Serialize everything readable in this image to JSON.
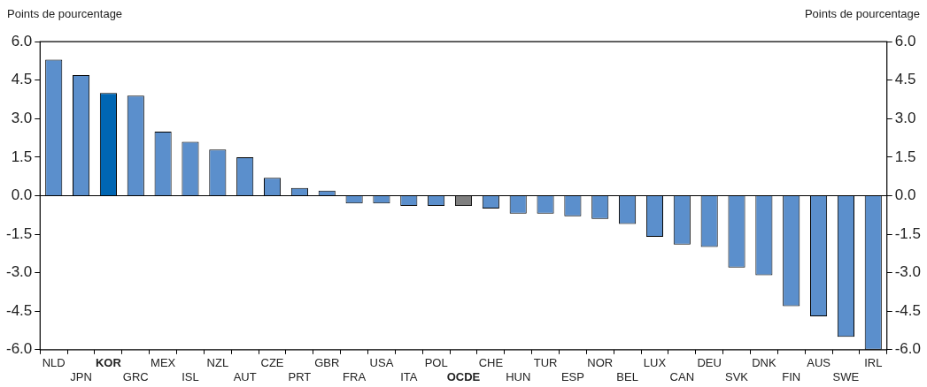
{
  "chart_data": {
    "type": "bar",
    "ylabel": "Points de pourcentage",
    "y2label": "Points de pourcentage",
    "categories": [
      "NLD",
      "JPN",
      "KOR",
      "GRC",
      "MEX",
      "ISL",
      "NZL",
      "AUT",
      "CZE",
      "PRT",
      "GBR",
      "FRA",
      "USA",
      "ITA",
      "POL",
      "OCDE",
      "CHE",
      "HUN",
      "TUR",
      "ESP",
      "NOR",
      "BEL",
      "LUX",
      "CAN",
      "DEU",
      "SVK",
      "DNK",
      "FIN",
      "AUS",
      "SWE",
      "IRL"
    ],
    "values": [
      5.3,
      4.7,
      4.0,
      3.9,
      2.5,
      2.1,
      1.8,
      1.5,
      0.7,
      0.3,
      0.2,
      -0.3,
      -0.3,
      -0.4,
      -0.4,
      -0.4,
      -0.5,
      -0.7,
      -0.7,
      -0.8,
      -0.9,
      -1.1,
      -1.6,
      -1.9,
      -2.0,
      -2.8,
      -3.1,
      -4.3,
      -4.7,
      -5.5,
      -6.0
    ],
    "colors": [
      "#5b8fcc",
      "#5b8fcc",
      "#0066b3",
      "#5b8fcc",
      "#5b8fcc",
      "#5b8fcc",
      "#5b8fcc",
      "#5b8fcc",
      "#5b8fcc",
      "#5b8fcc",
      "#5b8fcc",
      "#5b8fcc",
      "#5b8fcc",
      "#5b8fcc",
      "#5b8fcc",
      "#7f7f7f",
      "#5b8fcc",
      "#5b8fcc",
      "#5b8fcc",
      "#5b8fcc",
      "#5b8fcc",
      "#5b8fcc",
      "#5b8fcc",
      "#5b8fcc",
      "#5b8fcc",
      "#5b8fcc",
      "#5b8fcc",
      "#5b8fcc",
      "#5b8fcc",
      "#5b8fcc",
      "#5b8fcc"
    ],
    "ylim": [
      -6.0,
      6.0
    ],
    "yticks": [
      {
        "value": 6,
        "label": "6.0"
      },
      {
        "value": 4.5,
        "label": "4.5"
      },
      {
        "value": 3,
        "label": "3.0"
      },
      {
        "value": 1.5,
        "label": "1.5"
      },
      {
        "value": 0,
        "label": "0.0"
      },
      {
        "value": -1.5,
        "label": "-1.5"
      },
      {
        "value": -3,
        "label": "-3.0"
      },
      {
        "value": -4.5,
        "label": "-4.5"
      },
      {
        "value": -6,
        "label": "-6.0"
      }
    ],
    "y2lim": [
      -6.0,
      6.0
    ],
    "y2ticks": [
      {
        "value": 6,
        "label": "6.0"
      },
      {
        "value": 4.5,
        "label": "4.5"
      },
      {
        "value": 3,
        "label": "3.0"
      },
      {
        "value": 1.5,
        "label": "1.5"
      },
      {
        "value": 0,
        "label": "0.0"
      },
      {
        "value": -1.5,
        "label": "-1.5"
      },
      {
        "value": -3,
        "label": "-3.0"
      },
      {
        "value": -4.5,
        "label": "-4.5"
      },
      {
        "value": -6,
        "label": "-6.0"
      }
    ],
    "ref_lines": [
      {
        "axis": "y",
        "value": 0
      }
    ],
    "grid": false,
    "legend": false
  }
}
